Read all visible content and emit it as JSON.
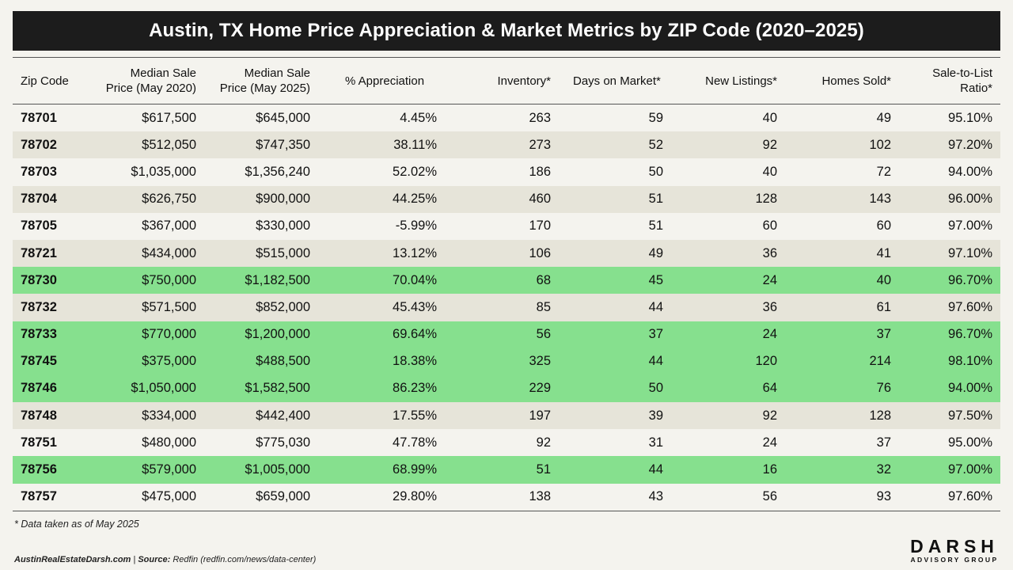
{
  "title": "Austin, TX Home Price Appreciation & Market Metrics by ZIP Code (2020–2025)",
  "columns": [
    {
      "line1": "Zip Code",
      "line2": ""
    },
    {
      "line1": "Median Sale",
      "line2": "Price (May 2020)"
    },
    {
      "line1": "Median Sale",
      "line2": "Price (May 2025)"
    },
    {
      "line1": "% Appreciation",
      "line2": ""
    },
    {
      "line1": "Inventory*",
      "line2": ""
    },
    {
      "line1": "Days on Market*",
      "line2": ""
    },
    {
      "line1": "New Listings*",
      "line2": ""
    },
    {
      "line1": "Homes Sold*",
      "line2": ""
    },
    {
      "line1": "Sale-to-List",
      "line2": "Ratio*"
    }
  ],
  "rows": [
    {
      "zip": "78701",
      "price_2020": "$617,500",
      "price_2025": "$645,000",
      "appreciation": "4.45%",
      "inventory": "263",
      "dom": "59",
      "new_listings": "40",
      "homes_sold": "49",
      "sale_to_list": "95.10%",
      "highlight": false
    },
    {
      "zip": "78702",
      "price_2020": "$512,050",
      "price_2025": "$747,350",
      "appreciation": "38.11%",
      "inventory": "273",
      "dom": "52",
      "new_listings": "92",
      "homes_sold": "102",
      "sale_to_list": "97.20%",
      "highlight": false
    },
    {
      "zip": "78703",
      "price_2020": "$1,035,000",
      "price_2025": "$1,356,240",
      "appreciation": "52.02%",
      "inventory": "186",
      "dom": "50",
      "new_listings": "40",
      "homes_sold": "72",
      "sale_to_list": "94.00%",
      "highlight": false
    },
    {
      "zip": "78704",
      "price_2020": "$626,750",
      "price_2025": "$900,000",
      "appreciation": "44.25%",
      "inventory": "460",
      "dom": "51",
      "new_listings": "128",
      "homes_sold": "143",
      "sale_to_list": "96.00%",
      "highlight": false
    },
    {
      "zip": "78705",
      "price_2020": "$367,000",
      "price_2025": "$330,000",
      "appreciation": "-5.99%",
      "inventory": "170",
      "dom": "51",
      "new_listings": "60",
      "homes_sold": "60",
      "sale_to_list": "97.00%",
      "highlight": false
    },
    {
      "zip": "78721",
      "price_2020": "$434,000",
      "price_2025": "$515,000",
      "appreciation": "13.12%",
      "inventory": "106",
      "dom": "49",
      "new_listings": "36",
      "homes_sold": "41",
      "sale_to_list": "97.10%",
      "highlight": false
    },
    {
      "zip": "78730",
      "price_2020": "$750,000",
      "price_2025": "$1,182,500",
      "appreciation": "70.04%",
      "inventory": "68",
      "dom": "45",
      "new_listings": "24",
      "homes_sold": "40",
      "sale_to_list": "96.70%",
      "highlight": true
    },
    {
      "zip": "78732",
      "price_2020": "$571,500",
      "price_2025": "$852,000",
      "appreciation": "45.43%",
      "inventory": "85",
      "dom": "44",
      "new_listings": "36",
      "homes_sold": "61",
      "sale_to_list": "97.60%",
      "highlight": false
    },
    {
      "zip": "78733",
      "price_2020": "$770,000",
      "price_2025": "$1,200,000",
      "appreciation": "69.64%",
      "inventory": "56",
      "dom": "37",
      "new_listings": "24",
      "homes_sold": "37",
      "sale_to_list": "96.70%",
      "highlight": true
    },
    {
      "zip": "78745",
      "price_2020": "$375,000",
      "price_2025": "$488,500",
      "appreciation": "18.38%",
      "inventory": "325",
      "dom": "44",
      "new_listings": "120",
      "homes_sold": "214",
      "sale_to_list": "98.10%",
      "highlight": true
    },
    {
      "zip": "78746",
      "price_2020": "$1,050,000",
      "price_2025": "$1,582,500",
      "appreciation": "86.23%",
      "inventory": "229",
      "dom": "50",
      "new_listings": "64",
      "homes_sold": "76",
      "sale_to_list": "94.00%",
      "highlight": true
    },
    {
      "zip": "78748",
      "price_2020": "$334,000",
      "price_2025": "$442,400",
      "appreciation": "17.55%",
      "inventory": "197",
      "dom": "39",
      "new_listings": "92",
      "homes_sold": "128",
      "sale_to_list": "97.50%",
      "highlight": false
    },
    {
      "zip": "78751",
      "price_2020": "$480,000",
      "price_2025": "$775,030",
      "appreciation": "47.78%",
      "inventory": "92",
      "dom": "31",
      "new_listings": "24",
      "homes_sold": "37",
      "sale_to_list": "95.00%",
      "highlight": false
    },
    {
      "zip": "78756",
      "price_2020": "$579,000",
      "price_2025": "$1,005,000",
      "appreciation": "68.99%",
      "inventory": "51",
      "dom": "44",
      "new_listings": "16",
      "homes_sold": "32",
      "sale_to_list": "97.00%",
      "highlight": true
    },
    {
      "zip": "78757",
      "price_2020": "$475,000",
      "price_2025": "$659,000",
      "appreciation": "29.80%",
      "inventory": "138",
      "dom": "43",
      "new_listings": "56",
      "homes_sold": "93",
      "sale_to_list": "97.60%",
      "highlight": false
    }
  ],
  "footnote": "* Data taken as of May 2025",
  "source": {
    "site": "AustinRealEstateDarsh.com",
    "separator": " | ",
    "label": "Source:",
    "text": " Redfin (redfin.com/news/data-center)"
  },
  "logo": {
    "name": "DARSH",
    "tagline": "ADVISORY GROUP"
  },
  "colors": {
    "title_bg": "#1c1c1c",
    "row_alt": "#e6e4d9",
    "row_highlight": "#86e08e",
    "page_bg": "#f4f3ee"
  }
}
